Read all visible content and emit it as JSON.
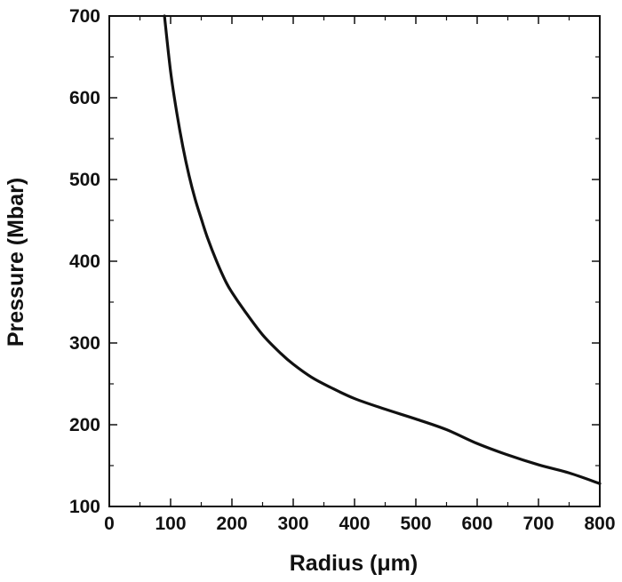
{
  "chart_data": {
    "type": "line",
    "title": "",
    "xlabel": "Radius (μm)",
    "ylabel": "Pressure (Mbar)",
    "xlim": [
      0,
      800
    ],
    "ylim": [
      100,
      700
    ],
    "x_ticks": [
      0,
      100,
      200,
      300,
      400,
      500,
      600,
      700,
      800
    ],
    "y_ticks": [
      100,
      200,
      300,
      400,
      500,
      600,
      700
    ],
    "x_tick_labels": [
      "0",
      "100",
      "200",
      "300",
      "400",
      "500",
      "600",
      "700",
      "800"
    ],
    "y_tick_labels": [
      "100",
      "200",
      "300",
      "400",
      "500",
      "600",
      "700"
    ],
    "grid": false,
    "legend": "none",
    "line_color": "#111111",
    "series": [
      {
        "x": [
          90,
          100,
          110,
          120,
          130,
          140,
          150,
          160,
          175,
          190,
          200,
          220,
          250,
          280,
          300,
          330,
          360,
          400,
          450,
          500,
          550,
          600,
          650,
          700,
          750,
          800
        ],
        "y": [
          700,
          632,
          582,
          540,
          505,
          476,
          452,
          429,
          400,
          375,
          362,
          340,
          310,
          287,
          274,
          258,
          246,
          232,
          219,
          207,
          194,
          177,
          163,
          151,
          141,
          128
        ]
      }
    ]
  }
}
